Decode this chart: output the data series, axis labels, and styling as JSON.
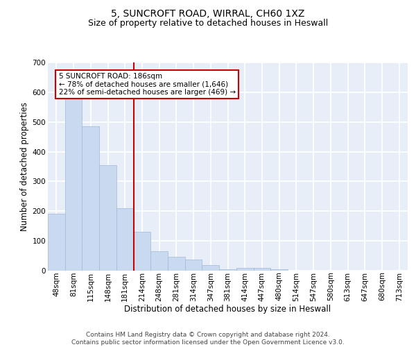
{
  "title_line1": "5, SUNCROFT ROAD, WIRRAL, CH60 1XZ",
  "title_line2": "Size of property relative to detached houses in Heswall",
  "xlabel": "Distribution of detached houses by size in Heswall",
  "ylabel": "Number of detached properties",
  "bar_labels": [
    "48sqm",
    "81sqm",
    "115sqm",
    "148sqm",
    "181sqm",
    "214sqm",
    "248sqm",
    "281sqm",
    "314sqm",
    "347sqm",
    "381sqm",
    "414sqm",
    "447sqm",
    "480sqm",
    "514sqm",
    "547sqm",
    "580sqm",
    "613sqm",
    "647sqm",
    "680sqm",
    "713sqm"
  ],
  "bar_values": [
    192,
    580,
    485,
    355,
    210,
    130,
    65,
    47,
    37,
    18,
    5,
    10,
    10,
    5,
    0,
    0,
    0,
    0,
    0,
    0,
    0
  ],
  "bar_color": "#c9daf0",
  "bar_edge_color": "#a0b8d8",
  "highlight_index": 4,
  "highlight_line_color": "#cc0000",
  "annotation_text": "5 SUNCROFT ROAD: 186sqm\n← 78% of detached houses are smaller (1,646)\n22% of semi-detached houses are larger (469) →",
  "annotation_box_color": "#ffffff",
  "annotation_box_edge_color": "#cc0000",
  "ylim": [
    0,
    700
  ],
  "yticks": [
    0,
    100,
    200,
    300,
    400,
    500,
    600,
    700
  ],
  "footer_text": "Contains HM Land Registry data © Crown copyright and database right 2024.\nContains public sector information licensed under the Open Government Licence v3.0.",
  "background_color": "#e8eef8",
  "grid_color": "#ffffff",
  "title_fontsize": 10,
  "subtitle_fontsize": 9,
  "axis_label_fontsize": 8.5,
  "tick_fontsize": 7.5,
  "footer_fontsize": 6.5,
  "annotation_fontsize": 7.5
}
